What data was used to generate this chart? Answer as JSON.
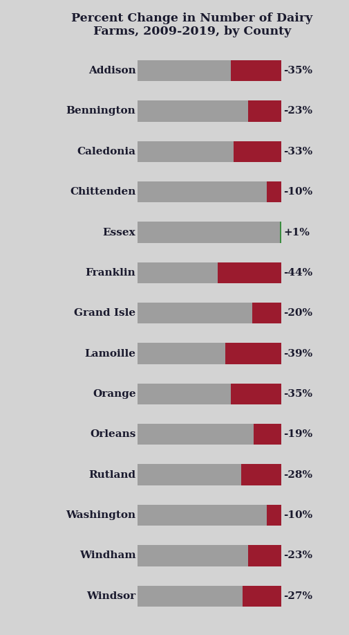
{
  "title": "Percent Change in Number of Dairy\nFarms, 2009-2019, by County",
  "counties": [
    "Addison",
    "Bennington",
    "Caledonia",
    "Chittenden",
    "Essex",
    "Franklin",
    "Grand Isle",
    "Lamoille",
    "Orange",
    "Orleans",
    "Rutland",
    "Washington",
    "Windham",
    "Windsor"
  ],
  "changes": [
    -35,
    -23,
    -33,
    -10,
    1,
    -44,
    -20,
    -39,
    -35,
    -19,
    -28,
    -10,
    -23,
    -27
  ],
  "labels": [
    "-35%",
    "-23%",
    "-33%",
    "-10%",
    "+1%",
    "-44%",
    "-20%",
    "-39%",
    "-35%",
    "-19%",
    "-28%",
    "-10%",
    "-23%",
    "-27%"
  ],
  "bar_total": 100,
  "gray_color": "#9E9E9E",
  "red_color": "#9B1B2E",
  "green_color": "#3A8C3F",
  "bg_color": "#D3D3D3",
  "title_fontsize": 12.5,
  "label_fontsize": 11,
  "county_fontsize": 11,
  "bar_height": 0.52
}
